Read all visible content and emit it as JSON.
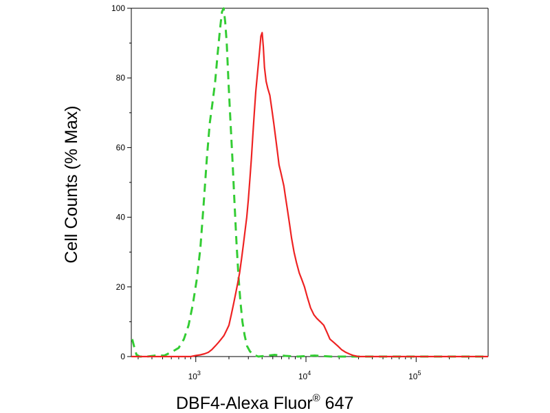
{
  "chart_data": {
    "type": "line",
    "title": "",
    "xlabel": "DBF4-Alexa Fluor",
    "xlabel_superscript": "®",
    "xlabel_suffix": "647",
    "ylabel": "Cell Counts (% Max)",
    "x_scale": "log",
    "xlim": [
      260,
      450000
    ],
    "ylim": [
      0,
      100
    ],
    "grid": false,
    "legend": "none",
    "y_ticks": [
      {
        "value": 0,
        "label": "0"
      },
      {
        "value": 20,
        "label": "20"
      },
      {
        "value": 40,
        "label": "40"
      },
      {
        "value": 60,
        "label": "60"
      },
      {
        "value": 80,
        "label": "80"
      },
      {
        "value": 100,
        "label": "100"
      }
    ],
    "x_tick_labels": [
      {
        "value": 1000,
        "base": "10",
        "exp": "3"
      },
      {
        "value": 10000,
        "base": "10",
        "exp": "4"
      },
      {
        "value": 100000,
        "base": "10",
        "exp": "5"
      }
    ],
    "series": [
      {
        "color": "#33cc33",
        "dash": "dashed",
        "x": [
          265,
          275,
          290,
          310,
          360,
          430,
          520,
          620,
          700,
          780,
          860,
          940,
          1020,
          1100,
          1180,
          1260,
          1340,
          1420,
          1500,
          1580,
          1660,
          1730,
          1790,
          1850,
          1910,
          1980,
          2060,
          2150,
          2240,
          2340,
          2440,
          2540,
          2650,
          2780,
          2920,
          3100,
          3350,
          3700,
          4300,
          5200,
          6500,
          8500,
          12000,
          17000,
          25000,
          40000,
          70000,
          150000,
          450000
        ],
        "y": [
          5,
          3,
          0.5,
          0,
          0,
          0.3,
          0.3,
          1.5,
          2.5,
          5,
          9,
          15,
          22,
          31,
          44,
          57,
          67,
          73,
          79,
          87,
          94,
          99,
          100,
          96,
          90,
          79,
          68,
          57,
          45,
          33,
          23,
          16,
          10,
          6,
          3,
          1.5,
          0.5,
          0,
          0.2,
          0.5,
          0.2,
          0,
          0.3,
          0,
          0,
          0,
          0,
          0,
          0
        ]
      },
      {
        "color": "#ee2222",
        "dash": "solid",
        "x": [
          260,
          600,
          900,
          1000,
          1100,
          1200,
          1300,
          1400,
          1500,
          1600,
          1700,
          1800,
          1900,
          2000,
          2100,
          2200,
          2300,
          2400,
          2500,
          2600,
          2700,
          2800,
          2900,
          3000,
          3100,
          3200,
          3300,
          3400,
          3500,
          3600,
          3700,
          3800,
          3900,
          4000,
          4100,
          4200,
          4350,
          4500,
          4700,
          4900,
          5100,
          5300,
          5500,
          5700,
          5900,
          6100,
          6300,
          6500,
          6800,
          7100,
          7400,
          7800,
          8200,
          8700,
          9200,
          9700,
          10300,
          11000,
          11800,
          12500,
          13500,
          14500,
          15500,
          16500,
          18000,
          19500,
          21000,
          23000,
          25000,
          27000,
          30000,
          40000,
          80000,
          200000,
          450000
        ],
        "y": [
          0,
          0,
          0,
          0.3,
          0.5,
          0.8,
          1.2,
          2,
          3,
          4,
          5,
          6,
          7.5,
          9,
          12,
          15,
          18,
          21,
          24,
          28,
          32,
          36,
          40,
          45,
          51,
          57,
          64,
          70,
          76,
          80,
          84,
          88,
          92,
          93,
          89,
          83,
          79,
          77,
          75,
          71,
          67,
          63,
          59,
          55,
          53,
          51,
          49,
          46,
          42,
          38,
          34,
          30,
          27,
          24,
          22,
          20,
          17,
          14,
          12,
          11,
          10,
          9,
          7,
          5,
          4,
          3,
          2,
          1.2,
          0.7,
          0.3,
          0,
          0,
          0,
          0,
          0
        ]
      }
    ]
  }
}
